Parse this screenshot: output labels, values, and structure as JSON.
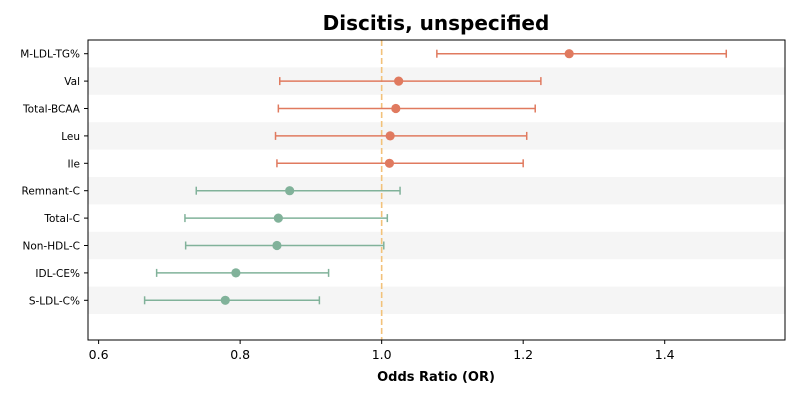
{
  "chart_data": {
    "type": "forest",
    "title": "Discitis, unspecified",
    "xlabel": "Odds Ratio (OR)",
    "xlim": [
      0.585,
      1.57
    ],
    "xticks": [
      0.6,
      0.8,
      1.0,
      1.2,
      1.4
    ],
    "xtick_labels": [
      "0.6",
      "0.8",
      "1.0",
      "1.2",
      "1.4"
    ],
    "reference_line": 1.0,
    "colors": {
      "positive": "#e07a5f",
      "negative": "#81b29a",
      "reference": "#f2c27a",
      "band": "#f5f5f5"
    },
    "categories": [
      "M-LDL-TG%",
      "Val",
      "Total-BCAA",
      "Leu",
      "Ile",
      "Remnant-C",
      "Total-C",
      "Non-HDL-C",
      "IDL-CE%",
      "S-LDL-C%"
    ],
    "or": [
      1.265,
      1.024,
      1.02,
      1.012,
      1.011,
      0.87,
      0.854,
      0.852,
      0.794,
      0.779
    ],
    "ci_low": [
      1.078,
      0.856,
      0.854,
      0.85,
      0.852,
      0.738,
      0.722,
      0.723,
      0.682,
      0.665
    ],
    "ci_high": [
      1.487,
      1.225,
      1.217,
      1.205,
      1.2,
      1.026,
      1.008,
      1.003,
      0.925,
      0.912
    ]
  }
}
